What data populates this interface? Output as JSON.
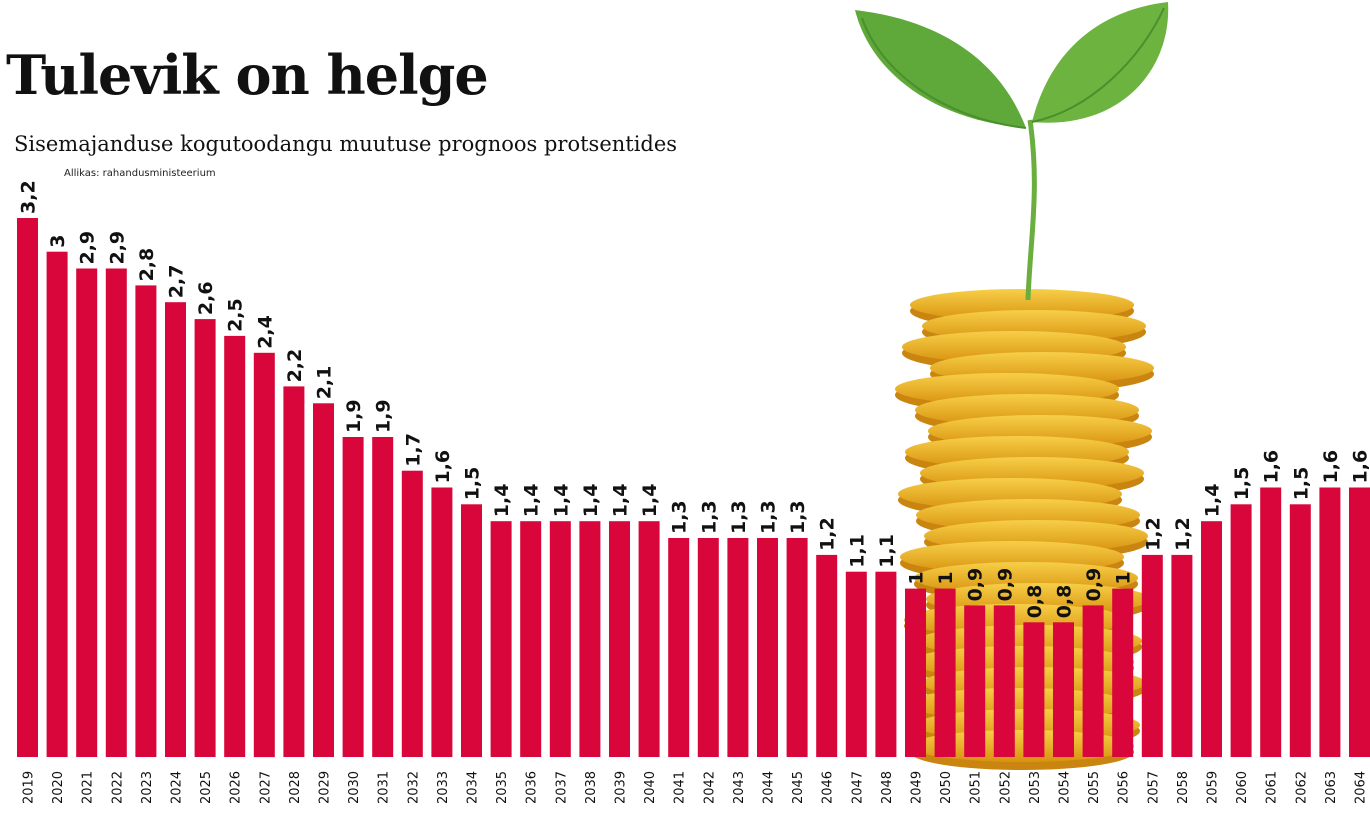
{
  "header": {
    "title": "Tulevik on helge",
    "subtitle": "Sisemajanduse kogutoodangu muutuse prognoos protsentides",
    "source": "Allikas: rahandusministeerium"
  },
  "colors": {
    "bar": "#d8063a",
    "leaf": "#5fa83a",
    "coin": "#e9a91b"
  },
  "illustration": {
    "icon": "seedling-on-coin-stack-icon"
  },
  "chart_data": {
    "type": "bar",
    "categories": [
      "2019",
      "2020",
      "2021",
      "2022",
      "2023",
      "2024",
      "2025",
      "2026",
      "2027",
      "2028",
      "2029",
      "2030",
      "2031",
      "2032",
      "2033",
      "2034",
      "2035",
      "2036",
      "2037",
      "2038",
      "2039",
      "2040",
      "2041",
      "2042",
      "2043",
      "2044",
      "2045",
      "2046",
      "2047",
      "2048",
      "2049",
      "2050",
      "2051",
      "2052",
      "2053",
      "2054",
      "2055",
      "2056",
      "2057",
      "2058",
      "2059",
      "2060",
      "2061",
      "2062",
      "2063",
      "2064"
    ],
    "values": [
      3.2,
      3,
      2.9,
      2.9,
      2.8,
      2.7,
      2.6,
      2.5,
      2.4,
      2.2,
      2.1,
      1.9,
      1.9,
      1.7,
      1.6,
      1.5,
      1.4,
      1.4,
      1.4,
      1.4,
      1.4,
      1.4,
      1.3,
      1.3,
      1.3,
      1.3,
      1.3,
      1.2,
      1.1,
      1.1,
      1,
      1,
      0.9,
      0.9,
      0.8,
      0.8,
      0.9,
      1,
      1.2,
      1.2,
      1.4,
      1.5,
      1.6,
      1.5,
      1.6,
      1.6
    ],
    "value_labels": [
      "3,2",
      "3",
      "2,9",
      "2,9",
      "2,8",
      "2,7",
      "2,6",
      "2,5",
      "2,4",
      "2,2",
      "2,1",
      "1,9",
      "1,9",
      "1,7",
      "1,6",
      "1,5",
      "1,4",
      "1,4",
      "1,4",
      "1,4",
      "1,4",
      "1,4",
      "1,3",
      "1,3",
      "1,3",
      "1,3",
      "1,3",
      "1,2",
      "1,1",
      "1,1",
      "1",
      "1",
      "0,9",
      "0,9",
      "0,8",
      "0,8",
      "0,9",
      "1",
      "1,2",
      "1,2",
      "1,4",
      "1,5",
      "1,6",
      "1,5",
      "1,6",
      "1,6"
    ],
    "ylim": [
      0,
      3.2
    ],
    "grid": false,
    "legend": "none"
  }
}
